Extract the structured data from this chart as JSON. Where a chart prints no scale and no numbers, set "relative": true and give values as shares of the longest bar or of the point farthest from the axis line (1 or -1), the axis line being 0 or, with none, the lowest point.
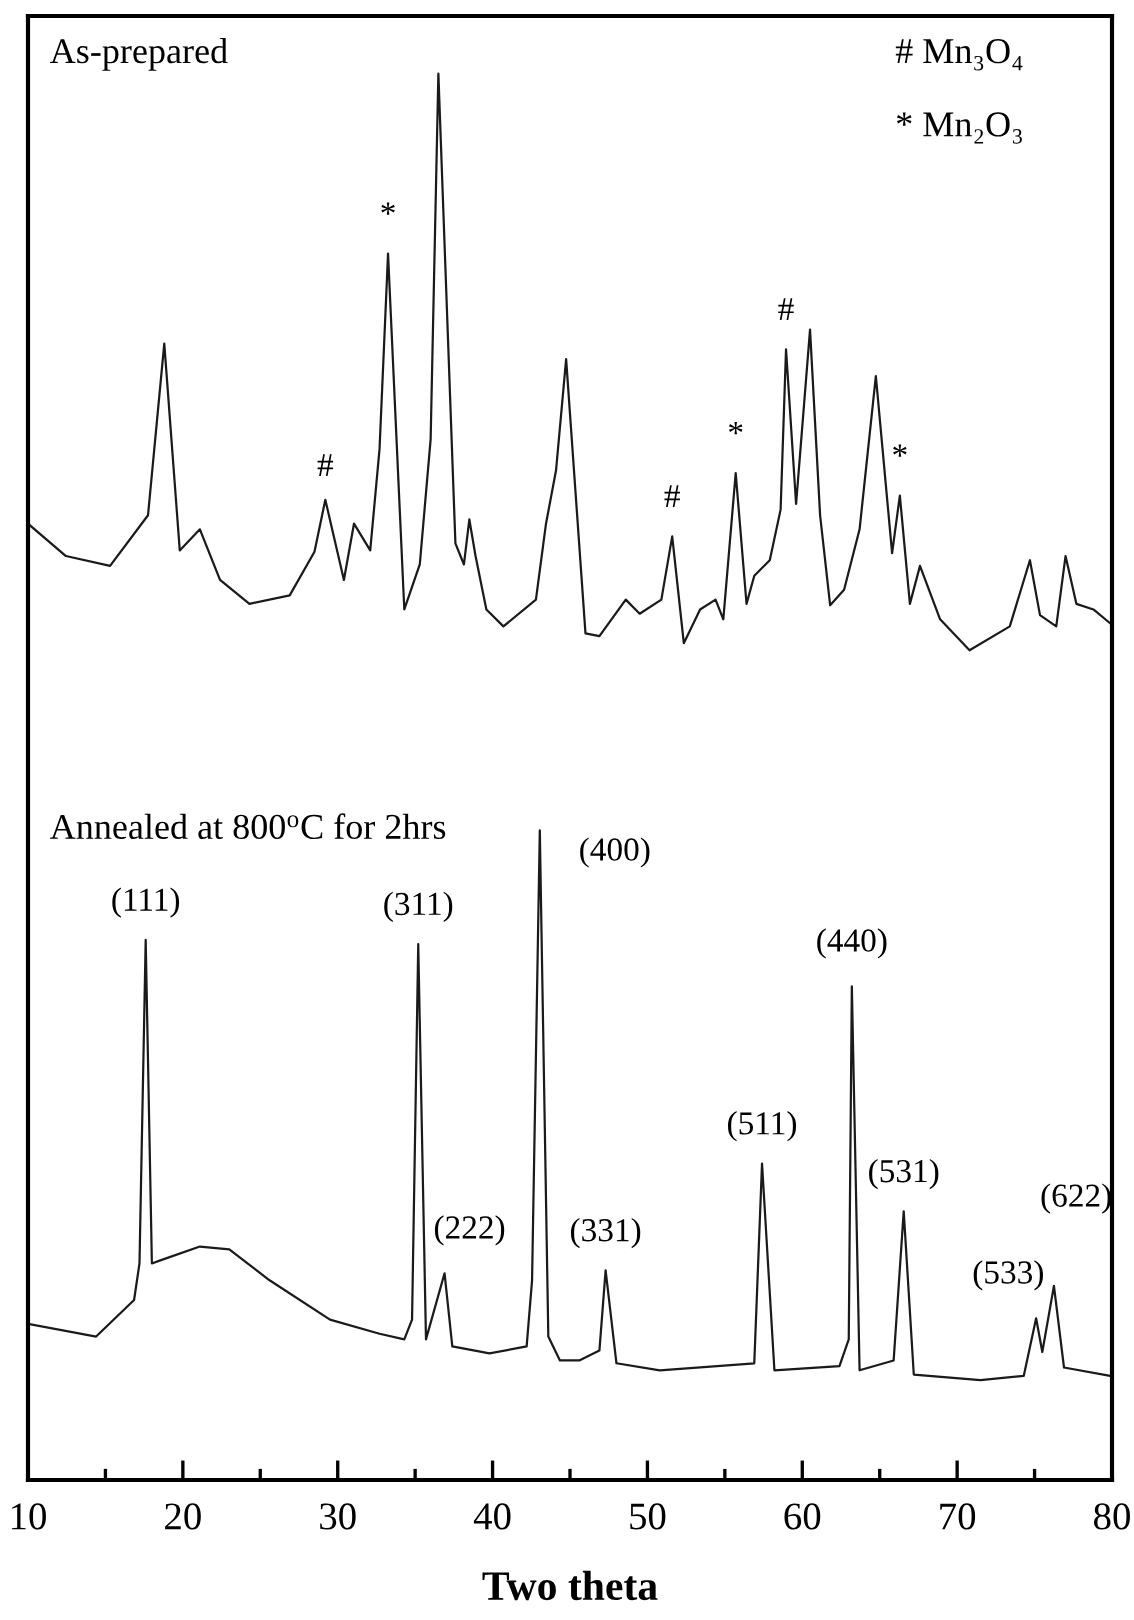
{
  "chart_data": {
    "type": "line",
    "relative": true,
    "xlabel": "Two theta",
    "xlim": [
      10,
      80
    ],
    "xticks": [
      10,
      20,
      30,
      40,
      50,
      60,
      70,
      80
    ],
    "tick_labels": "x",
    "grid": false,
    "legend": false,
    "marker": "none",
    "line_style": "solid",
    "series": [
      {
        "color": "#1a1a1a",
        "x": [
          10.0,
          12.45,
          15.3,
          17.75,
          18.8,
          19.8,
          21.1,
          22.4,
          24.3,
          26.9,
          28.5,
          29.2,
          30.4,
          31.05,
          32.1,
          32.7,
          33.25,
          34.3,
          35.3,
          36.0,
          36.5,
          37.6,
          38.15,
          38.5,
          38.9,
          39.6,
          40.7,
          42.8,
          43.45,
          44.1,
          44.75,
          46.0,
          46.9,
          48.6,
          49.5,
          50.9,
          51.6,
          52.35,
          53.4,
          54.4,
          54.9,
          55.7,
          56.4,
          56.9,
          57.9,
          58.6,
          58.95,
          59.6,
          60.5,
          61.15,
          61.8,
          62.7,
          63.7,
          64.75,
          65.8,
          66.3,
          66.95,
          67.6,
          68.9,
          70.8,
          73.4,
          74.7,
          75.35,
          76.4,
          77.0,
          77.7,
          78.8,
          79.9
        ],
        "values": [
          0.68,
          0.657,
          0.65,
          0.686,
          0.808,
          0.661,
          0.676,
          0.64,
          0.623,
          0.629,
          0.66,
          0.697,
          0.64,
          0.68,
          0.661,
          0.733,
          0.872,
          0.619,
          0.651,
          0.74,
          1.0,
          0.666,
          0.651,
          0.683,
          0.657,
          0.619,
          0.607,
          0.626,
          0.68,
          0.718,
          0.797,
          0.602,
          0.6,
          0.626,
          0.616,
          0.626,
          0.671,
          0.595,
          0.619,
          0.626,
          0.612,
          0.716,
          0.623,
          0.643,
          0.654,
          0.69,
          0.804,
          0.694,
          0.818,
          0.686,
          0.622,
          0.633,
          0.676,
          0.785,
          0.659,
          0.7,
          0.623,
          0.65,
          0.612,
          0.59,
          0.607,
          0.654,
          0.615,
          0.607,
          0.657,
          0.623,
          0.619,
          0.609
        ]
      },
      {
        "color": "#1a1a1a",
        "x": [
          10.0,
          14.4,
          16.85,
          17.2,
          17.6,
          18.0,
          18.5,
          21.1,
          23.0,
          25.6,
          29.5,
          32.7,
          34.3,
          34.8,
          35.2,
          35.7,
          36.9,
          37.4,
          39.8,
          42.2,
          42.55,
          43.05,
          43.6,
          44.35,
          45.6,
          46.9,
          47.3,
          48.0,
          50.8,
          56.9,
          57.4,
          58.2,
          62.4,
          63.0,
          63.2,
          63.7,
          65.9,
          66.55,
          67.2,
          71.5,
          74.3,
          75.1,
          75.5,
          76.25,
          76.9,
          79.9
        ],
        "values": [
          0.111,
          0.102,
          0.128,
          0.154,
          0.384,
          0.154,
          0.156,
          0.166,
          0.164,
          0.142,
          0.114,
          0.104,
          0.1,
          0.114,
          0.381,
          0.1,
          0.147,
          0.095,
          0.09,
          0.095,
          0.142,
          0.462,
          0.102,
          0.085,
          0.085,
          0.092,
          0.149,
          0.083,
          0.078,
          0.083,
          0.225,
          0.078,
          0.081,
          0.1,
          0.351,
          0.078,
          0.085,
          0.191,
          0.075,
          0.071,
          0.074,
          0.115,
          0.091,
          0.138,
          0.08,
          0.074
        ]
      }
    ],
    "annotations": [
      "As-prepared",
      "# Mn₃O₄",
      "* Mn₂O₃",
      "Annealed at 800$^{o}$C for 2hrs",
      {
        "text": "#",
        "x": 29.2,
        "y": 0.697
      },
      {
        "text": "*",
        "x": 33.25,
        "y": 0.872
      },
      {
        "text": "#",
        "x": 51.6,
        "y": 0.671
      },
      {
        "text": "*",
        "x": 55.7,
        "y": 0.716
      },
      {
        "text": "#",
        "x": 58.95,
        "y": 0.804
      },
      {
        "text": "*",
        "x": 66.3,
        "y": 0.7
      },
      {
        "text": "(111)",
        "x": 17.6,
        "y": 0.384
      },
      {
        "text": "(311)",
        "x": 35.2,
        "y": 0.381
      },
      {
        "text": "(222)",
        "x": 36.9,
        "y": 0.147
      },
      {
        "text": "(400)",
        "x": 43.05,
        "y": 0.462
      },
      {
        "text": "(331)",
        "x": 47.3,
        "y": 0.149
      },
      {
        "text": "(511)",
        "x": 57.4,
        "y": 0.225
      },
      {
        "text": "(440)",
        "x": 63.2,
        "y": 0.351
      },
      {
        "text": "(531)",
        "x": 66.55,
        "y": 0.191
      },
      {
        "text": "(533)",
        "x": 75.1,
        "y": 0.115
      },
      {
        "text": "(622)",
        "x": 76.25,
        "y": 0.138
      }
    ]
  }
}
